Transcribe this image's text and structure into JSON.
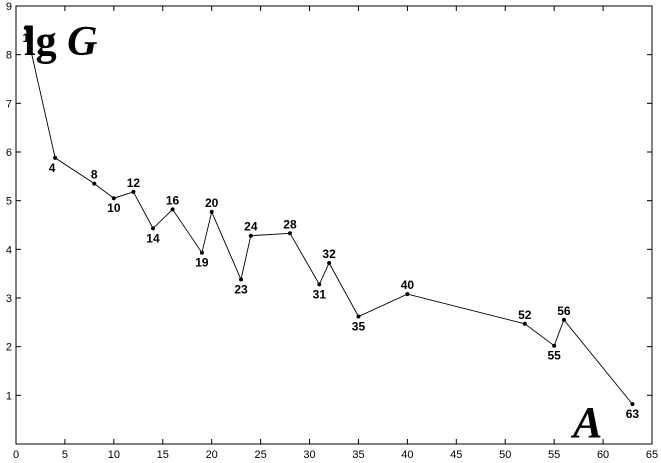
{
  "chart_data": {
    "type": "line",
    "xlabel": "A",
    "ylabel_prefix": "lg ",
    "ylabel_var": "G",
    "xlim": [
      0,
      65
    ],
    "ylim": [
      0,
      9
    ],
    "xticks": [
      0,
      5,
      10,
      15,
      20,
      25,
      30,
      35,
      40,
      45,
      50,
      55,
      60,
      65
    ],
    "yticks": [
      1,
      2,
      3,
      4,
      5,
      6,
      7,
      8,
      9
    ],
    "grid": false,
    "series": [
      {
        "points": [
          {
            "x": 1,
            "y": 8.55,
            "label": "1",
            "pos": "below"
          },
          {
            "x": 4,
            "y": 5.88,
            "label": "4",
            "pos": "below-left"
          },
          {
            "x": 8,
            "y": 5.35,
            "label": "8",
            "pos": "above"
          },
          {
            "x": 10,
            "y": 5.05,
            "label": "10",
            "pos": "below"
          },
          {
            "x": 12,
            "y": 5.18,
            "label": "12",
            "pos": "above"
          },
          {
            "x": 14,
            "y": 4.43,
            "label": "14",
            "pos": "below"
          },
          {
            "x": 16,
            "y": 4.82,
            "label": "16",
            "pos": "above"
          },
          {
            "x": 19,
            "y": 3.93,
            "label": "19",
            "pos": "below"
          },
          {
            "x": 20,
            "y": 4.77,
            "label": "20",
            "pos": "above"
          },
          {
            "x": 23,
            "y": 3.38,
            "label": "23",
            "pos": "below"
          },
          {
            "x": 24,
            "y": 4.28,
            "label": "24",
            "pos": "above"
          },
          {
            "x": 28,
            "y": 4.33,
            "label": "28",
            "pos": "above"
          },
          {
            "x": 31,
            "y": 3.28,
            "label": "31",
            "pos": "below"
          },
          {
            "x": 32,
            "y": 3.72,
            "label": "32",
            "pos": "above"
          },
          {
            "x": 35,
            "y": 2.62,
            "label": "35",
            "pos": "below"
          },
          {
            "x": 40,
            "y": 3.08,
            "label": "40",
            "pos": "above"
          },
          {
            "x": 52,
            "y": 2.47,
            "label": "52",
            "pos": "above"
          },
          {
            "x": 55,
            "y": 2.02,
            "label": "55",
            "pos": "below"
          },
          {
            "x": 56,
            "y": 2.55,
            "label": "56",
            "pos": "above"
          },
          {
            "x": 63,
            "y": 0.82,
            "label": "63",
            "pos": "below"
          }
        ]
      }
    ]
  }
}
